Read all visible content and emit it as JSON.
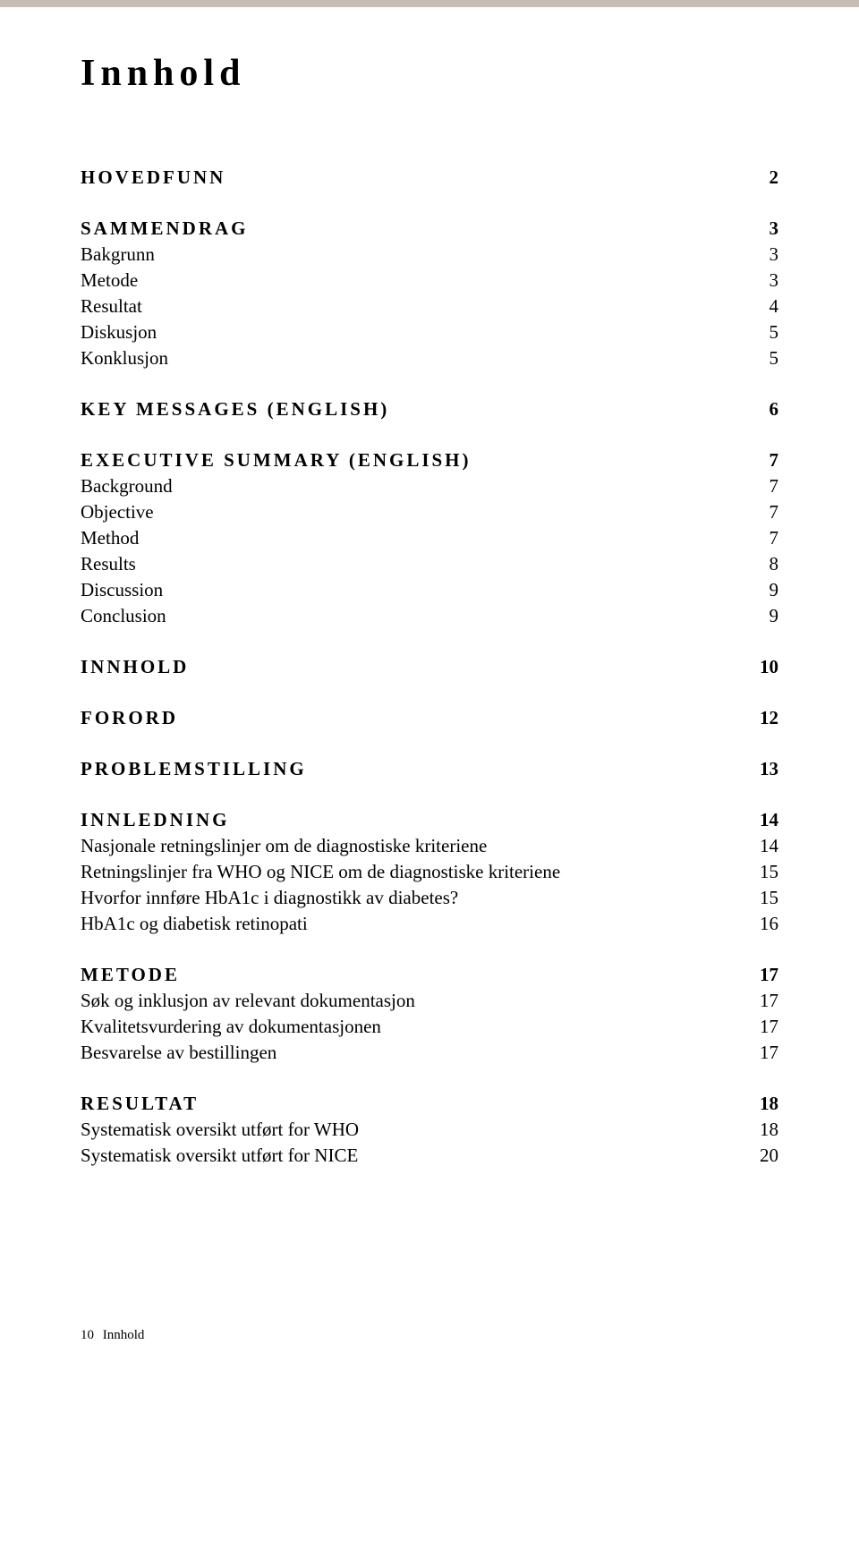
{
  "colors": {
    "top_border": "#c5bdb6",
    "background": "#ffffff",
    "text": "#000000"
  },
  "typography": {
    "title_fontsize": 42,
    "title_letterspacing": 6,
    "section_fontsize": 21,
    "section_letterspacing": 3,
    "subitem_fontsize": 21,
    "footer_fontsize": 15,
    "font_family": "Georgia, serif"
  },
  "title": "Innhold",
  "toc": {
    "hovedfunn": {
      "label": "HOVEDFUNN",
      "page": "2"
    },
    "sammendrag": {
      "label": "SAMMENDRAG",
      "page": "3"
    },
    "bakgrunn": {
      "label": "Bakgrunn",
      "page": "3"
    },
    "metode": {
      "label": "Metode",
      "page": "3"
    },
    "resultat": {
      "label": "Resultat",
      "page": "4"
    },
    "diskusjon": {
      "label": "Diskusjon",
      "page": "5"
    },
    "konklusjon": {
      "label": "Konklusjon",
      "page": "5"
    },
    "keymessages": {
      "label": "KEY MESSAGES (ENGLISH)",
      "page": "6"
    },
    "execsummary": {
      "label": "EXECUTIVE SUMMARY (ENGLISH)",
      "page": "7"
    },
    "background": {
      "label": "Background",
      "page": "7"
    },
    "objective": {
      "label": "Objective",
      "page": "7"
    },
    "method": {
      "label": "Method",
      "page": "7"
    },
    "results": {
      "label": "Results",
      "page": "8"
    },
    "discussion": {
      "label": "Discussion",
      "page": "9"
    },
    "conclusion": {
      "label": "Conclusion",
      "page": "9"
    },
    "innholdsec": {
      "label": "INNHOLD",
      "page": "10"
    },
    "forord": {
      "label": "FORORD",
      "page": "12"
    },
    "problemstilling": {
      "label": "PROBLEMSTILLING",
      "page": "13"
    },
    "innledning": {
      "label": "INNLEDNING",
      "page": "14"
    },
    "nasjonale": {
      "label": "Nasjonale retningslinjer om de diagnostiske kriteriene",
      "page": "14"
    },
    "retningslinjer": {
      "label": "Retningslinjer fra WHO og NICE om de diagnostiske kriteriene",
      "page": "15"
    },
    "hvorfor": {
      "label": "Hvorfor innføre HbA1c i diagnostikk av diabetes?",
      "page": "15"
    },
    "hba1c": {
      "label": "HbA1c og diabetisk retinopati",
      "page": "16"
    },
    "metodesec": {
      "label": "METODE",
      "page": "17"
    },
    "sok": {
      "label": "Søk og inklusjon av relevant dokumentasjon",
      "page": "17"
    },
    "kvalitet": {
      "label": "Kvalitetsvurdering av dokumentasjonen",
      "page": "17"
    },
    "besvarelse": {
      "label": "Besvarelse av bestillingen",
      "page": "17"
    },
    "resultatsec": {
      "label": "RESULTAT",
      "page": "18"
    },
    "syswho": {
      "label": "Systematisk oversikt utført for WHO",
      "page": "18"
    },
    "sysnice": {
      "label": "Systematisk oversikt utført for NICE",
      "page": "20"
    }
  },
  "footer": {
    "page_number": "10",
    "section_name": "Innhold"
  }
}
